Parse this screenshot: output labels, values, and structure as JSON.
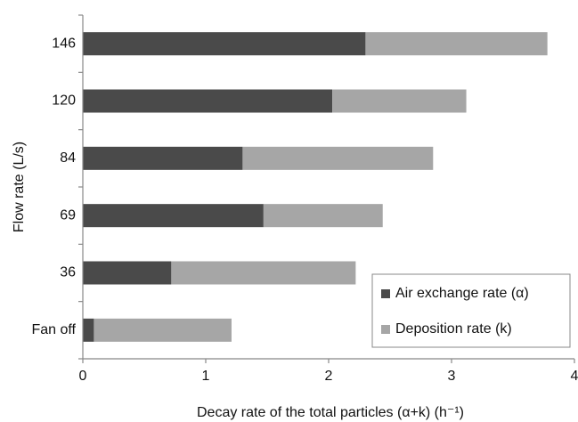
{
  "chart_data": {
    "type": "stacked_barh",
    "xlabel": "Decay rate of the total particles (α+k) (h⁻¹)",
    "ylabel": "Flow rate (L/s)",
    "categories": [
      "Fan off",
      "36",
      "69",
      "84",
      "120",
      "146"
    ],
    "series": [
      {
        "name": "Air exchange rate (α)",
        "color": "#4a4a4a",
        "values": [
          0.09,
          0.72,
          1.47,
          1.3,
          2.03,
          2.3
        ]
      },
      {
        "name": "Deposition rate (k)",
        "color": "#a6a6a6",
        "values": [
          1.12,
          1.5,
          0.97,
          1.55,
          1.09,
          1.48
        ]
      }
    ],
    "xlim": [
      0,
      4
    ],
    "xticks": [
      0,
      1,
      2,
      3,
      4
    ],
    "legend": "lower right",
    "grid": false
  }
}
